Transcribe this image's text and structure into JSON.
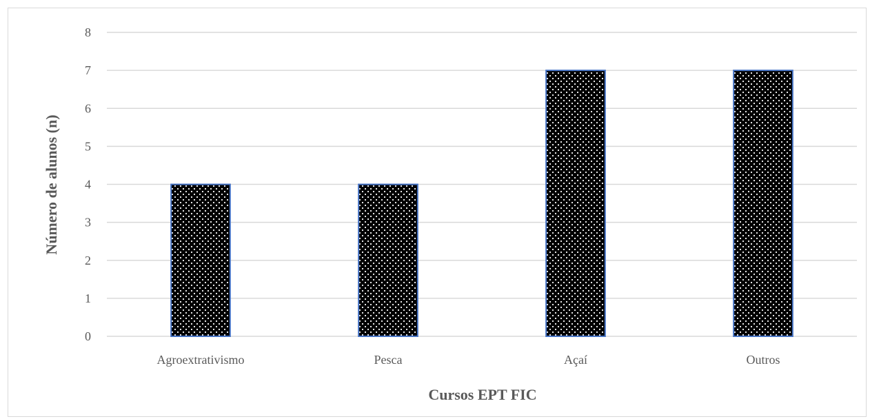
{
  "chart_data": {
    "type": "bar",
    "categories": [
      "Agroextrativismo",
      "Pesca",
      "Açaí",
      "Outros"
    ],
    "values": [
      4,
      4,
      7,
      7
    ],
    "title": "",
    "xlabel": "Cursos EPT FIC",
    "ylabel": "Número de alunos (n)",
    "ylim": [
      0,
      8
    ],
    "yticks": [
      0,
      1,
      2,
      3,
      4,
      5,
      6,
      7,
      8
    ],
    "grid": true,
    "legend": "none",
    "bar_fill": "#000000",
    "bar_pattern": "white dots",
    "bar_border_color": "#4472c4",
    "grid_color": "#d9d9d9",
    "text_color": "#595959"
  }
}
